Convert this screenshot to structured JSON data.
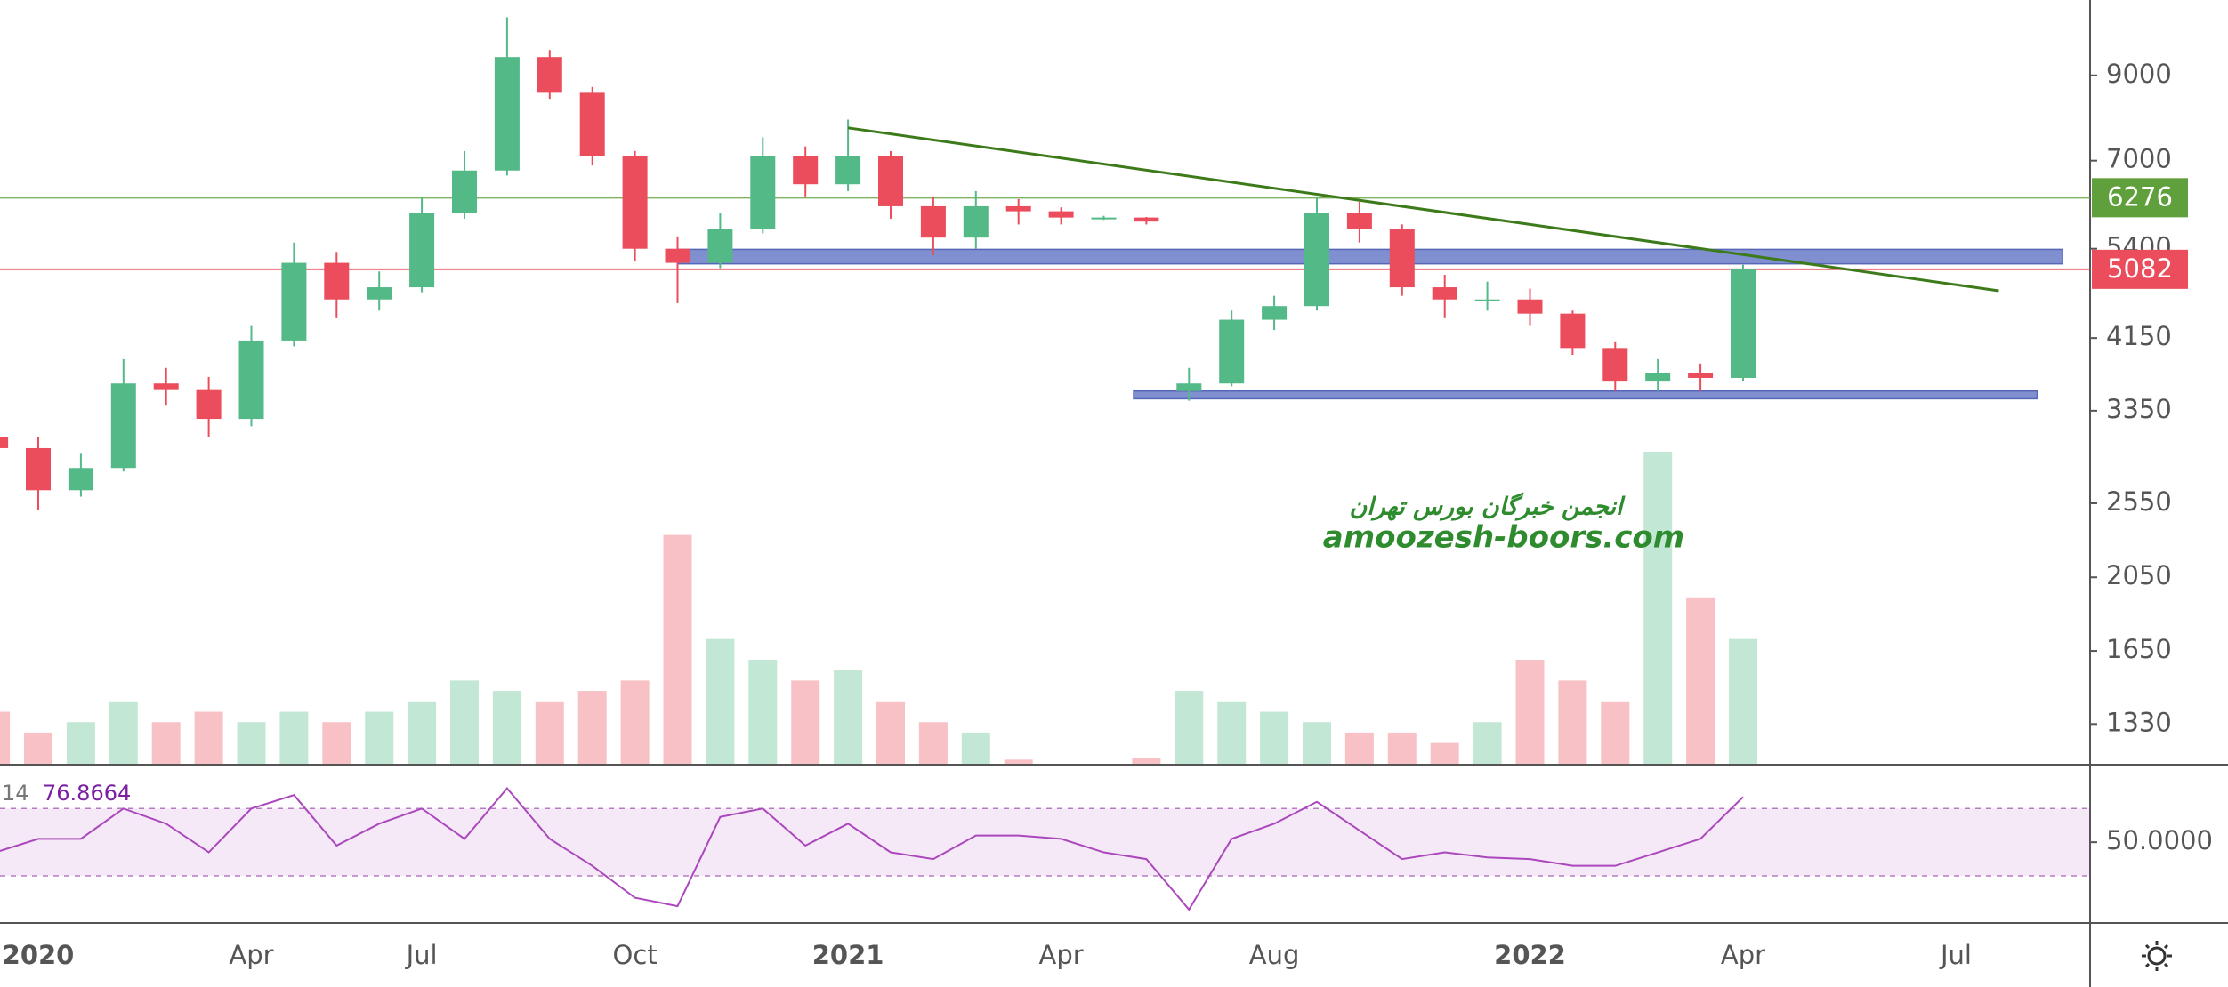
{
  "chart_data": {
    "type": "candlestick",
    "categories": [
      null,
      "2020",
      null,
      null,
      null,
      null,
      "Apr",
      null,
      null,
      null,
      "Jul",
      null,
      null,
      null,
      null,
      "Oct",
      null,
      null,
      null,
      null,
      "2021",
      null,
      null,
      null,
      null,
      "Apr",
      null,
      null,
      null,
      null,
      "Aug",
      null,
      null,
      null,
      null,
      null,
      "2022",
      null,
      null,
      null,
      null,
      "Apr",
      null,
      null,
      null,
      null,
      "Jul",
      null,
      null
    ],
    "open": [
      3100,
      3000,
      2650,
      2830,
      3630,
      3560,
      3270,
      4120,
      5180,
      4650,
      4820,
      6000,
      6800,
      9500,
      8550,
      7090,
      5400,
      5180,
      5730,
      7090,
      6530,
      7090,
      6120,
      5580,
      6120,
      6030,
      5920,
      5920,
      3550,
      3630,
      4380,
      4560,
      6000,
      5730,
      4820,
      4650,
      4650,
      4460,
      4030,
      3650,
      3740,
      3690,
      null,
      null,
      null,
      null,
      null,
      null,
      null
    ],
    "high": [
      3250,
      3100,
      2950,
      3900,
      3800,
      3700,
      4300,
      5500,
      5350,
      5050,
      6300,
      7200,
      10680,
      9700,
      8700,
      7200,
      5600,
      6000,
      7500,
      7300,
      7900,
      7200,
      6300,
      6400,
      6250,
      6100,
      5950,
      5930,
      3800,
      4500,
      4700,
      6276,
      6200,
      5800,
      5000,
      4900,
      4800,
      4500,
      4100,
      3900,
      3850,
      5150,
      null,
      null,
      null,
      null,
      null,
      null,
      null
    ],
    "low": [
      2900,
      2500,
      2600,
      2800,
      3400,
      3100,
      3200,
      4050,
      4400,
      4500,
      4750,
      5900,
      6700,
      8400,
      6900,
      5200,
      4600,
      5100,
      5650,
      6300,
      6400,
      5900,
      5300,
      5400,
      5800,
      5800,
      5880,
      5800,
      3450,
      3600,
      4250,
      4500,
      5500,
      4700,
      4400,
      4500,
      4300,
      3950,
      3550,
      3550,
      3550,
      3650,
      null,
      null,
      null,
      null,
      null,
      null,
      null
    ],
    "close": [
      3000,
      2650,
      2830,
      3630,
      3560,
      3270,
      4120,
      5180,
      4650,
      4820,
      6000,
      6800,
      9500,
      8550,
      7090,
      5400,
      5180,
      5730,
      7090,
      6530,
      7090,
      6120,
      5580,
      6120,
      6030,
      5920,
      5920,
      5850,
      3630,
      4380,
      4560,
      6000,
      5730,
      4820,
      4650,
      4650,
      4460,
      4030,
      3650,
      3740,
      3690,
      5082,
      null,
      null,
      null,
      null,
      null,
      null,
      null
    ],
    "up_color": "#53b987",
    "down_color": "#eb4d5c",
    "log_scale": true,
    "ylim": [
      1183,
      11240
    ],
    "yticks": [
      9000,
      7000,
      5400,
      4150,
      3350,
      2550,
      2050,
      1650,
      1330
    ],
    "volume": {
      "values": [
        25,
        15,
        20,
        30,
        20,
        25,
        20,
        25,
        20,
        25,
        30,
        40,
        35,
        30,
        35,
        40,
        110,
        60,
        50,
        40,
        45,
        30,
        20,
        15,
        2,
        0,
        0,
        3,
        35,
        30,
        25,
        20,
        15,
        15,
        10,
        20,
        50,
        40,
        30,
        150,
        80,
        60,
        null,
        null,
        null,
        null,
        null,
        null,
        null
      ],
      "up_color": "#53b987",
      "down_color": "#eb4d5c"
    },
    "trendline": {
      "x": [
        20,
        47
      ],
      "values": [
        7710,
        4770
      ],
      "color": "#3d7a1a"
    },
    "price_lines": [
      {
        "value": 6276,
        "color": "#5fa03c"
      },
      {
        "value": 5082,
        "color": "#eb4d5c"
      }
    ],
    "zones": [
      {
        "x": [
          16,
          48.5
        ],
        "range": [
          5165,
          5390
        ]
      },
      {
        "x": [
          26.7,
          47.9
        ],
        "range": [
          3470,
          3550
        ]
      }
    ],
    "zone_color": "#7f8fd0",
    "rsi": {
      "length": 14,
      "values": [
        44,
        52,
        52,
        70,
        61,
        44,
        70,
        78,
        48,
        61,
        70,
        52,
        82,
        52,
        36,
        17,
        12,
        65,
        70,
        48,
        61,
        44,
        40,
        54,
        54,
        52,
        44,
        40,
        10,
        52,
        61,
        74,
        57,
        40,
        44,
        41,
        40,
        36,
        36,
        44,
        52,
        76.8664,
        null,
        null,
        null,
        null,
        null,
        null,
        null
      ],
      "ylim": [
        2,
        95
      ],
      "yticks": [
        {
          "value": 50,
          "label": "50.0000"
        }
      ],
      "bands": [
        30,
        70
      ],
      "color": "#ab47bc"
    },
    "watermark": [
      "انجمن خبرگان بورس تهران",
      "amoozesh-boors.com"
    ]
  }
}
